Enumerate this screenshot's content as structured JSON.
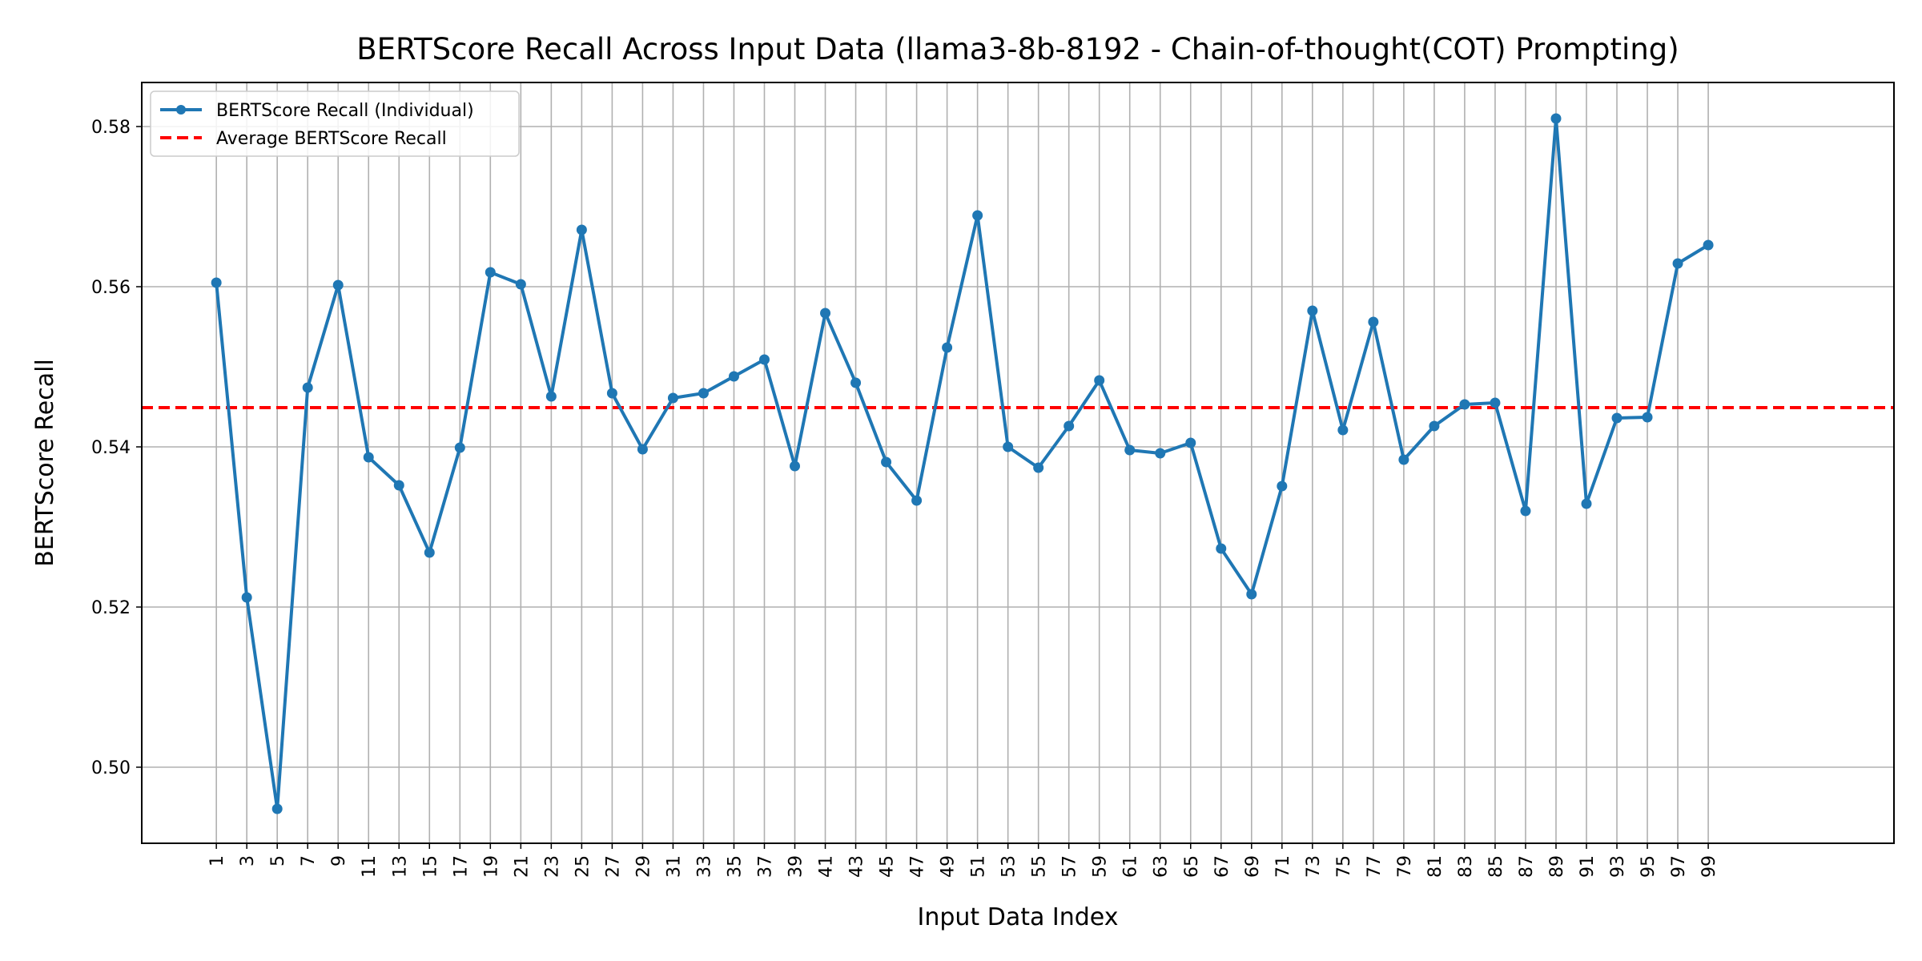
{
  "chart_data": {
    "type": "line",
    "title": "BERTScore Recall Across Input Data (llama3-8b-8192 - Chain-of-thought(COT) Prompting)",
    "xlabel": "Input Data Index",
    "ylabel": "BERTScore Recall",
    "x": [
      1,
      3,
      5,
      7,
      9,
      11,
      13,
      15,
      17,
      19,
      21,
      23,
      25,
      27,
      29,
      31,
      33,
      35,
      37,
      39,
      41,
      43,
      45,
      47,
      49,
      51,
      53,
      55,
      57,
      59,
      61,
      63,
      65,
      67,
      69,
      71,
      73,
      75,
      77,
      79,
      81,
      83,
      85,
      87,
      89,
      91,
      93,
      95,
      97,
      99
    ],
    "xticks": [
      "1",
      "3",
      "5",
      "7",
      "9",
      "11",
      "13",
      "15",
      "17",
      "19",
      "21",
      "23",
      "25",
      "27",
      "29",
      "31",
      "33",
      "35",
      "37",
      "39",
      "41",
      "43",
      "45",
      "47",
      "49",
      "51",
      "53",
      "55",
      "57",
      "59",
      "61",
      "63",
      "65",
      "67",
      "69",
      "71",
      "73",
      "75",
      "77",
      "79",
      "81",
      "83",
      "85",
      "87",
      "89",
      "91",
      "93",
      "95",
      "97",
      "99"
    ],
    "xlim": [
      -3.9,
      111.2
    ],
    "ylim": [
      0.4905,
      0.5855
    ],
    "yticks": [
      0.5,
      0.52,
      0.54,
      0.56,
      0.58
    ],
    "ytick_labels": [
      "0.50",
      "0.52",
      "0.54",
      "0.56",
      "0.58"
    ],
    "grid": true,
    "legend_position": "top-left",
    "series": [
      {
        "name": "BERTScore Recall (Individual)",
        "color": "#1f77b4",
        "style": "line-with-markers",
        "values": [
          0.5605,
          0.5212,
          0.4948,
          0.5474,
          0.5602,
          0.5387,
          0.5352,
          0.5268,
          0.5399,
          0.5618,
          0.5603,
          0.5463,
          0.5671,
          0.5467,
          0.5397,
          0.5461,
          0.5467,
          0.5488,
          0.5509,
          0.5376,
          0.5567,
          0.548,
          0.5381,
          0.5333,
          0.5524,
          0.5689,
          0.54,
          0.5374,
          0.5426,
          0.5483,
          0.5396,
          0.5392,
          0.5405,
          0.5273,
          0.5216,
          0.5351,
          0.557,
          0.5421,
          0.5556,
          0.5384,
          0.5426,
          0.5453,
          0.5455,
          0.532,
          0.581,
          0.5329,
          0.5436,
          0.5437,
          0.5629,
          0.5652
        ]
      },
      {
        "name": "Average BERTScore Recall",
        "color": "#ff0000",
        "style": "dashed-horizontal",
        "value": 0.5449
      }
    ]
  }
}
